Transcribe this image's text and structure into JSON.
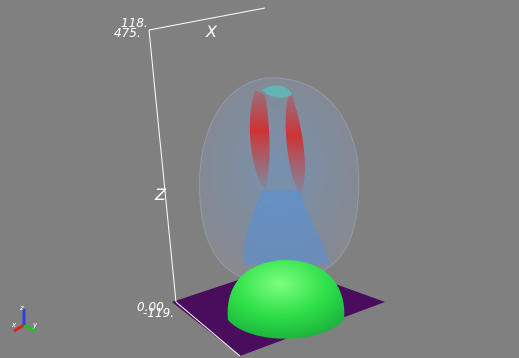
{
  "axes": {
    "x_label": "X",
    "z_label": "Z",
    "top_labels": [
      "118.",
      "475."
    ],
    "bottom_labels": [
      "0.00",
      "-119."
    ]
  },
  "triad": {
    "labels": [
      "x",
      "y",
      "z"
    ]
  }
}
